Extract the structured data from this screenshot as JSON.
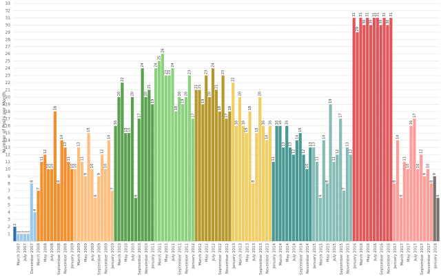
{
  "chart_data": {
    "type": "bar",
    "title": "",
    "xlabel": "",
    "ylabel": "Number of Posts per Month",
    "ylim": [
      0,
      33
    ],
    "yticks": [
      1,
      2,
      3,
      4,
      5,
      6,
      7,
      8,
      9,
      10,
      11,
      12,
      13,
      14,
      15,
      16,
      17,
      18,
      19,
      20,
      21,
      22,
      23,
      24,
      25,
      26,
      27,
      28,
      29,
      30,
      31,
      32,
      33
    ],
    "grid": true,
    "x_tick_labels": [
      "March 2007",
      "July 2007",
      "December 2007",
      "March 2008",
      "May 2008",
      "July 2008",
      "September 2008",
      "November 2008",
      "January 2009",
      "March 2009",
      "May 2009",
      "July 2009",
      "September 2009",
      "November 2009",
      "January 2010",
      "March 2010",
      "May 2010",
      "July 2010",
      "September 2010",
      "November 2010",
      "January 2011",
      "March 2011",
      "May 2011",
      "July 2011",
      "September 2011",
      "November 2011",
      "January 2012",
      "March 2012",
      "May 2012",
      "July 2012",
      "September 2012",
      "November 2012",
      "January 2013",
      "March 2013",
      "May 2013",
      "July 2013",
      "September 2013",
      "November 2013",
      "January 2014",
      "March 2014",
      "May 2014",
      "July 2014",
      "September 2014",
      "November 2014",
      "January 2015",
      "March 2015",
      "May 2015",
      "July 2015",
      "September 2015",
      "November 2015",
      "January 2016",
      "March 2016",
      "May 2016",
      "July 2016",
      "September 2016",
      "November 2016",
      "January 2017",
      "March 2017",
      "May 2017",
      "July 2017",
      "September 2017",
      "November 2017",
      "January 2018"
    ],
    "year_colors": {
      "2007": "#2f6fae",
      "2007b": "#9ec7ea",
      "2008": "#f28e2b",
      "2009": "#ffbe7d",
      "2010": "#59a14f",
      "2011": "#8cd17d",
      "2012": "#b6992d",
      "2013": "#f1ce63",
      "2014": "#499894",
      "2015": "#86bcb6",
      "2016": "#e15759",
      "2017": "#ff9d9a",
      "2018": "#79706e"
    },
    "series": [
      {
        "name": "2007",
        "color_key": "2007",
        "values": [
          2
        ]
      },
      {
        "name": "2007",
        "color_key": "2007b",
        "values": [
          1,
          1,
          1,
          1,
          8,
          4
        ]
      },
      {
        "name": "2008",
        "color_key": "2008",
        "values": [
          7,
          11,
          12,
          10,
          10,
          18,
          8,
          14,
          13,
          11,
          10
        ]
      },
      {
        "name": "2009",
        "color_key": "2009",
        "values": [
          10,
          13,
          11,
          9,
          15,
          10,
          6,
          9,
          12,
          10,
          14,
          7
        ]
      },
      {
        "name": "2010",
        "color_key": "2010",
        "values": [
          16,
          20,
          22,
          15,
          15,
          20,
          6,
          17,
          24,
          20,
          21,
          19
        ]
      },
      {
        "name": "2011",
        "color_key": "2011",
        "values": [
          24,
          25,
          26,
          23,
          23,
          24,
          18,
          20,
          19,
          20,
          23,
          17
        ]
      },
      {
        "name": "2012",
        "color_key": "2012",
        "values": [
          21,
          21,
          19,
          23,
          20,
          24,
          21,
          18,
          23,
          17,
          18
        ]
      },
      {
        "name": "2013",
        "color_key": "2013",
        "values": [
          22,
          16,
          20,
          16,
          15,
          18,
          8,
          15,
          20,
          16,
          14,
          16
        ]
      },
      {
        "name": "2014",
        "color_key": "2014",
        "values": [
          11,
          16,
          16,
          13,
          16,
          13,
          12,
          14,
          15,
          12,
          10,
          13
        ]
      },
      {
        "name": "2015",
        "color_key": "2015",
        "values": [
          13,
          11,
          6,
          14,
          8,
          19,
          11,
          12,
          17,
          7,
          13,
          12
        ]
      },
      {
        "name": "2016",
        "color_key": "2016",
        "values": [
          31,
          29,
          31,
          30,
          31,
          30,
          31,
          31,
          30,
          31,
          30,
          31
        ]
      },
      {
        "name": "2017",
        "color_key": "2017",
        "values": [
          8,
          14,
          6,
          11,
          10,
          16,
          17,
          10,
          12,
          9,
          10,
          8
        ]
      },
      {
        "name": "2018",
        "color_key": "2018",
        "values": [
          9,
          6
        ]
      }
    ]
  }
}
